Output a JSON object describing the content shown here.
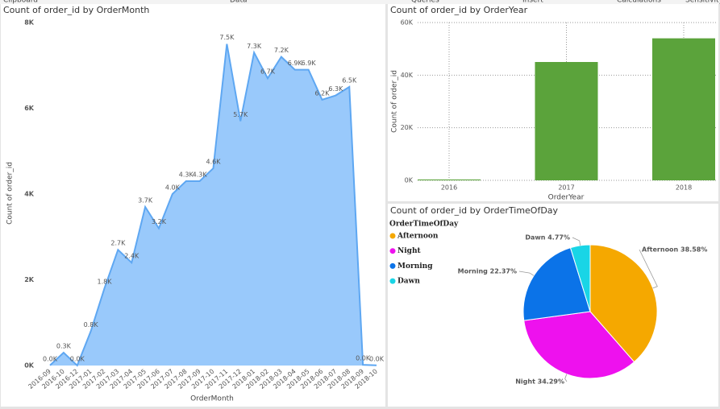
{
  "ribbon_tabs": [
    "Clipboard",
    "Data",
    "Queries",
    "Insert",
    "Calculations",
    "Sensitivity"
  ],
  "chart_data": [
    {
      "type": "area",
      "title": "Count of order_id by OrderMonth",
      "x_label": "OrderMonth",
      "y_label": "Count of order_id",
      "color": "#99c9fb",
      "line_color": "#5ea7f2",
      "categories": [
        "2016-09",
        "2016-10",
        "2016-12",
        "2017-01",
        "2017-02",
        "2017-03",
        "2017-04",
        "2017-05",
        "2017-06",
        "2017-07",
        "2017-08",
        "2017-09",
        "2017-10",
        "2017-11",
        "2017-12",
        "2018-01",
        "2018-02",
        "2018-03",
        "2018-04",
        "2018-05",
        "2018-06",
        "2018-07",
        "2018-08",
        "2018-09",
        "2018-10"
      ],
      "values": [
        4,
        300,
        1,
        800,
        1800,
        2700,
        2400,
        3700,
        3200,
        4000,
        4300,
        4300,
        4600,
        7500,
        5700,
        7300,
        6700,
        7200,
        6900,
        6900,
        6200,
        6300,
        6500,
        16,
        4
      ],
      "value_labels": [
        "0.0K",
        "0.3K",
        "0.0K",
        "0.8K",
        "1.8K",
        "2.7K",
        "2.4K",
        "3.7K",
        "3.2K",
        "4.0K",
        "4.3K",
        "4.3K",
        "4.6K",
        "7.5K",
        "5.7K",
        "7.3K",
        "6.7K",
        "7.2K",
        "6.9K",
        "6.9K",
        "6.2K",
        "6.3K",
        "6.5K",
        "0.0K",
        "0.0K"
      ],
      "ylim": [
        0,
        8000
      ],
      "yticks": [
        {
          "value": 0,
          "label": "0K"
        },
        {
          "value": 2000,
          "label": "2K"
        },
        {
          "value": 4000,
          "label": "4K"
        },
        {
          "value": 6000,
          "label": "6K"
        },
        {
          "value": 8000,
          "label": "8K"
        }
      ]
    },
    {
      "type": "bar",
      "title": "Count of order_id by OrderYear",
      "x_label": "OrderYear",
      "y_label": "Count of order_id",
      "color": "#5ba33b",
      "grid": true,
      "categories": [
        "2016",
        "2017",
        "2018"
      ],
      "values": [
        330,
        45000,
        54000
      ],
      "ylim": [
        0,
        60000
      ],
      "yticks": [
        {
          "value": 0,
          "label": "0K"
        },
        {
          "value": 20000,
          "label": "20K"
        },
        {
          "value": 40000,
          "label": "40K"
        },
        {
          "value": 60000,
          "label": "60K"
        }
      ]
    },
    {
      "type": "pie",
      "title": "Count of order_id by OrderTimeOfDay",
      "legend_title": "OrderTimeOfDay",
      "categories": [
        "Afternoon",
        "Night",
        "Morning",
        "Dawn"
      ],
      "values": [
        38.58,
        34.29,
        22.37,
        4.77
      ],
      "value_labels": [
        "Afternoon 38.58%",
        "Night 34.29%",
        "Morning 22.37%",
        "Dawn 4.77%"
      ],
      "colors": [
        "#f5a800",
        "#ee11ee",
        "#0b73e8",
        "#19d5e6"
      ]
    }
  ]
}
